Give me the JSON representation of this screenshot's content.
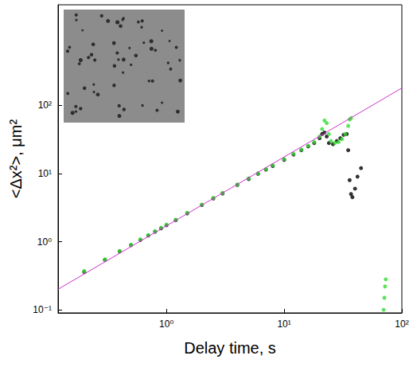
{
  "chart_data": {
    "type": "scatter",
    "x_label": "Delay time, s",
    "y_label": "<Δx²>, μm²",
    "log": true,
    "grid": false,
    "xlim": [
      0.12,
      100
    ],
    "ylim": [
      0.09,
      3000
    ],
    "xticks": [
      {
        "value": 1,
        "label": "10⁰"
      },
      {
        "value": 10,
        "label": "10¹"
      },
      {
        "value": 100,
        "label": "10²"
      }
    ],
    "yticks": [
      {
        "value": 0.1,
        "label": "10⁻¹"
      },
      {
        "value": 1,
        "label": "10⁰"
      },
      {
        "value": 10,
        "label": "10¹"
      },
      {
        "value": 100,
        "label": "10²"
      }
    ],
    "series": [
      {
        "type": "scatter",
        "color": "#000000",
        "marker": "circle",
        "x": [
          0.2,
          0.3,
          0.4,
          0.5,
          0.6,
          0.7,
          0.8,
          0.9,
          1,
          1.2,
          1.5,
          2,
          2.5,
          3,
          4,
          5,
          6,
          7,
          8,
          10,
          12,
          14,
          16,
          18,
          20,
          21,
          22,
          23,
          24,
          26,
          28,
          30,
          32,
          34,
          35,
          36,
          37,
          38,
          40,
          42,
          45
        ],
        "values": [
          0.36,
          0.54,
          0.72,
          0.89,
          1.06,
          1.23,
          1.4,
          1.57,
          1.74,
          2.07,
          2.6,
          3.45,
          4.3,
          5.1,
          6.8,
          8.3,
          9.9,
          11.4,
          12.9,
          15.9,
          19,
          22,
          25,
          28,
          33,
          38,
          40,
          35,
          28,
          27,
          30,
          33,
          37,
          38,
          22,
          8,
          5,
          4.5,
          6,
          9,
          12
        ]
      },
      {
        "type": "scatter",
        "color": "#33dd33",
        "marker": "circle",
        "x": [
          0.2,
          0.3,
          0.4,
          0.5,
          0.6,
          0.7,
          0.8,
          0.9,
          1,
          1.2,
          1.5,
          2,
          2.5,
          3,
          4,
          5,
          6,
          7,
          8,
          10,
          12,
          14,
          16,
          18,
          20,
          21,
          22,
          23,
          24,
          25,
          27,
          29,
          31,
          33,
          35,
          36,
          37,
          70,
          71,
          72,
          73
        ],
        "values": [
          0.37,
          0.55,
          0.73,
          0.9,
          1.08,
          1.25,
          1.42,
          1.6,
          1.78,
          2.1,
          2.65,
          3.5,
          4.4,
          5.2,
          6.9,
          8.5,
          10.1,
          11.6,
          13.2,
          16.3,
          19.5,
          22.5,
          25.5,
          29,
          35,
          45,
          60,
          55,
          38,
          30,
          28,
          29,
          32,
          38,
          50,
          62,
          65,
          0.1,
          0.15,
          0.22,
          0.28
        ]
      },
      {
        "type": "line",
        "color": "#cc33cc",
        "line_style": "solid",
        "x": [
          0.12,
          100
        ],
        "values": [
          0.2,
          180
        ]
      }
    ]
  }
}
